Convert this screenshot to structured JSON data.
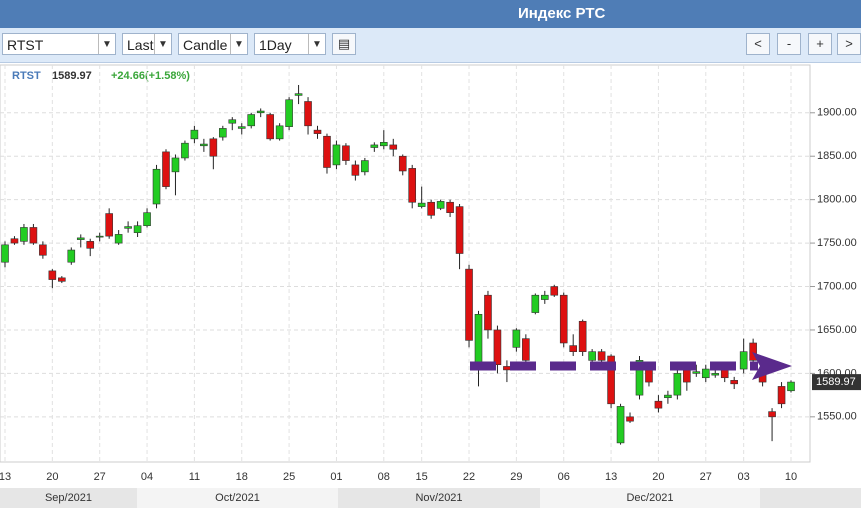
{
  "header": {
    "title": "Индекс РТС"
  },
  "toolbar": {
    "symbol": "RTST",
    "field": "Last",
    "style": "Candle",
    "interval": "1Day",
    "buttons": [
      "<",
      "-",
      "+",
      ">"
    ]
  },
  "chart_data": {
    "type": "candlestick",
    "symbol": "RTST",
    "last": "1589.97",
    "change": "+24.66(+1.58%)",
    "up_color": "#22cc22",
    "down_color": "#dd1111",
    "categories": [
      "13",
      null,
      null,
      null,
      null,
      "20",
      null,
      null,
      null,
      null,
      "27",
      null,
      null,
      null,
      null,
      "04",
      null,
      null,
      null,
      null,
      "11",
      null,
      null,
      null,
      null,
      "18",
      null,
      null,
      null,
      null,
      "25",
      null,
      null,
      null,
      null,
      "01",
      null,
      null,
      null,
      null,
      "08",
      null,
      null,
      null,
      "15",
      null,
      null,
      null,
      null,
      "22",
      null,
      null,
      null,
      null,
      "29",
      null,
      null,
      null,
      null,
      "06",
      null,
      null,
      null,
      null,
      "13",
      null,
      null,
      null,
      null,
      "20",
      null,
      null,
      null,
      null,
      "27",
      null,
      null,
      null,
      "03",
      null,
      null,
      null,
      null,
      "10"
    ],
    "open": [
      1728,
      1755,
      1752,
      1768,
      1748,
      1718,
      1710,
      1728,
      1754,
      1752,
      1757,
      1784,
      1750,
      1767,
      1762,
      1770,
      1795,
      1855,
      1832,
      1848,
      1870,
      1862,
      1870,
      1872,
      1888,
      1882,
      1885,
      1900,
      1898,
      1870,
      1884,
      1920,
      1913,
      1880,
      1873,
      1840,
      1862,
      1840,
      1832,
      1860,
      1862,
      1863,
      1850,
      1836,
      1792,
      1797,
      1790,
      1797,
      1792,
      1720,
      1610,
      1690,
      1650,
      1608,
      1630,
      1640,
      1670,
      1685,
      1700,
      1690,
      1632,
      1660,
      1615,
      1625,
      1620,
      1520,
      1550,
      1575,
      1605,
      1568,
      1572,
      1575,
      1605,
      1600,
      1595,
      1598,
      1605,
      1592,
      1605,
      1635,
      1600,
      1556,
      1585,
      1580
    ],
    "high": [
      1752,
      1758,
      1772,
      1772,
      1752,
      1720,
      1712,
      1745,
      1760,
      1755,
      1762,
      1790,
      1765,
      1775,
      1775,
      1790,
      1840,
      1858,
      1852,
      1868,
      1885,
      1870,
      1872,
      1885,
      1895,
      1888,
      1900,
      1905,
      1900,
      1888,
      1918,
      1932,
      1918,
      1885,
      1876,
      1868,
      1865,
      1845,
      1848,
      1866,
      1880,
      1870,
      1852,
      1840,
      1815,
      1800,
      1800,
      1800,
      1795,
      1725,
      1672,
      1695,
      1655,
      1615,
      1652,
      1645,
      1692,
      1695,
      1702,
      1693,
      1645,
      1662,
      1628,
      1628,
      1622,
      1565,
      1555,
      1620,
      1608,
      1575,
      1580,
      1605,
      1608,
      1610,
      1610,
      1612,
      1608,
      1596,
      1640,
      1640,
      1605,
      1560,
      1590,
      1592
    ],
    "low": [
      1722,
      1748,
      1748,
      1748,
      1732,
      1698,
      1704,
      1725,
      1745,
      1735,
      1752,
      1755,
      1748,
      1762,
      1757,
      1768,
      1790,
      1812,
      1805,
      1845,
      1865,
      1855,
      1835,
      1868,
      1880,
      1875,
      1882,
      1895,
      1868,
      1868,
      1880,
      1910,
      1875,
      1870,
      1830,
      1835,
      1840,
      1822,
      1828,
      1855,
      1858,
      1850,
      1828,
      1790,
      1790,
      1778,
      1788,
      1780,
      1720,
      1630,
      1585,
      1640,
      1600,
      1590,
      1625,
      1610,
      1668,
      1680,
      1688,
      1630,
      1620,
      1620,
      1612,
      1610,
      1560,
      1518,
      1543,
      1570,
      1585,
      1555,
      1565,
      1570,
      1580,
      1596,
      1590,
      1595,
      1590,
      1582,
      1600,
      1612,
      1585,
      1522,
      1560,
      1578
    ],
    "close": [
      1748,
      1750,
      1768,
      1750,
      1736,
      1708,
      1706,
      1742,
      1756,
      1744,
      1758,
      1758,
      1760,
      1769,
      1770,
      1785,
      1835,
      1815,
      1848,
      1865,
      1880,
      1864,
      1850,
      1882,
      1892,
      1884,
      1898,
      1902,
      1870,
      1885,
      1915,
      1922,
      1885,
      1876,
      1837,
      1863,
      1845,
      1828,
      1845,
      1863,
      1866,
      1858,
      1833,
      1797,
      1796,
      1782,
      1798,
      1785,
      1738,
      1638,
      1668,
      1650,
      1610,
      1604,
      1650,
      1615,
      1690,
      1690,
      1690,
      1635,
      1625,
      1625,
      1625,
      1615,
      1565,
      1562,
      1545,
      1615,
      1590,
      1560,
      1575,
      1600,
      1590,
      1602,
      1605,
      1600,
      1595,
      1588,
      1625,
      1615,
      1590,
      1550,
      1565,
      1590
    ],
    "ylim": [
      1498,
      1955
    ],
    "yticks": [
      {
        "value": 1550,
        "label": "1550.00"
      },
      {
        "value": 1600,
        "label": "1600.00"
      },
      {
        "value": 1650,
        "label": "1650.00"
      },
      {
        "value": 1700,
        "label": "1700.00"
      },
      {
        "value": 1750,
        "label": "1750.00"
      },
      {
        "value": 1800,
        "label": "1800.00"
      },
      {
        "value": 1850,
        "label": "1850.00"
      },
      {
        "value": 1900,
        "label": "1900.00"
      }
    ],
    "grid": true,
    "months": [
      "Sep/2021",
      "Oct/2021",
      "Nov/2021",
      "Dec/2021"
    ]
  }
}
